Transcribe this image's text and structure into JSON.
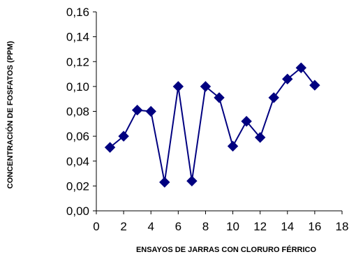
{
  "chart_data": {
    "type": "line",
    "title": "",
    "xlabel": "ENSAYOS DE JARRAS CON CLORURO FÉRRICO",
    "ylabel": "CONCENTRACIÓN DE FOSFATOS (PPM)",
    "xlim": [
      0,
      18
    ],
    "ylim": [
      0,
      0.16
    ],
    "x_ticks": [
      0,
      2,
      4,
      6,
      8,
      10,
      12,
      14,
      16,
      18
    ],
    "x_tick_labels": [
      "0",
      "2",
      "4",
      "6",
      "8",
      "10",
      "12",
      "14",
      "16",
      "18"
    ],
    "y_ticks": [
      0,
      0.02,
      0.04,
      0.06,
      0.08,
      0.1,
      0.12,
      0.14,
      0.16
    ],
    "y_tick_labels": [
      "0,00",
      "0,02",
      "0,04",
      "0,06",
      "0,08",
      "0,10",
      "0,12",
      "0,14",
      "0,16"
    ],
    "grid": false,
    "legend": "none",
    "series": [
      {
        "marker": "diamond",
        "color": "#000080",
        "x": [
          1,
          2,
          3,
          4,
          5,
          6,
          7,
          8,
          9,
          10,
          11,
          12,
          13,
          14,
          15,
          16
        ],
        "y": [
          0.051,
          0.06,
          0.081,
          0.08,
          0.023,
          0.1,
          0.024,
          0.1,
          0.091,
          0.052,
          0.072,
          0.059,
          0.091,
          0.106,
          0.115,
          0.101
        ]
      }
    ]
  }
}
